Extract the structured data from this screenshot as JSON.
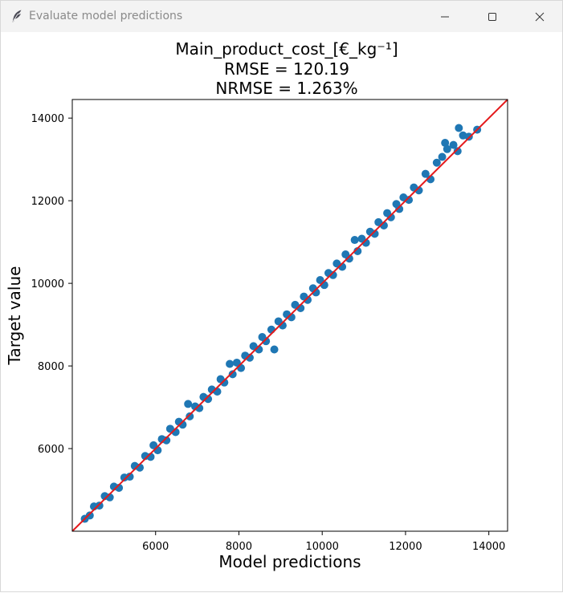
{
  "window": {
    "title": "Evaluate model prediction",
    "title_suffix": "s",
    "controls": {
      "minimize": "minimize-icon",
      "maximize": "maximize-icon",
      "close": "close-icon"
    }
  },
  "chart_data": {
    "type": "scatter",
    "title_lines": [
      "Main_product_cost_[€_kg⁻¹]",
      "RMSE = 120.19",
      "NRMSE = 1.263%"
    ],
    "xlabel": "Model predictions",
    "ylabel": "Target value",
    "xlim": [
      4000,
      14450
    ],
    "ylim": [
      4000,
      14450
    ],
    "xticks": [
      6000,
      8000,
      10000,
      12000,
      14000
    ],
    "yticks": [
      6000,
      8000,
      10000,
      12000,
      14000
    ],
    "xtick_labels": [
      "6000",
      "8000",
      "10000",
      "12000",
      "14000"
    ],
    "ytick_labels": [
      "6000",
      "8000",
      "10000",
      "12000",
      "14000"
    ],
    "point_color": "#1f77b4",
    "line_color": "#e41a1c",
    "reference_line": "y = x",
    "points": [
      [
        4300,
        4300
      ],
      [
        4420,
        4380
      ],
      [
        4520,
        4600
      ],
      [
        4650,
        4620
      ],
      [
        4780,
        4850
      ],
      [
        4900,
        4820
      ],
      [
        5000,
        5080
      ],
      [
        5120,
        5050
      ],
      [
        5250,
        5300
      ],
      [
        5380,
        5320
      ],
      [
        5500,
        5580
      ],
      [
        5620,
        5540
      ],
      [
        5750,
        5820
      ],
      [
        5880,
        5800
      ],
      [
        5950,
        6080
      ],
      [
        6050,
        5960
      ],
      [
        6150,
        6230
      ],
      [
        6260,
        6200
      ],
      [
        6350,
        6480
      ],
      [
        6480,
        6400
      ],
      [
        6560,
        6650
      ],
      [
        6650,
        6580
      ],
      [
        6780,
        7080
      ],
      [
        6820,
        6780
      ],
      [
        6950,
        7020
      ],
      [
        7050,
        6980
      ],
      [
        7150,
        7250
      ],
      [
        7260,
        7200
      ],
      [
        7350,
        7430
      ],
      [
        7480,
        7380
      ],
      [
        7560,
        7680
      ],
      [
        7650,
        7600
      ],
      [
        7780,
        8050
      ],
      [
        7850,
        7800
      ],
      [
        7950,
        8080
      ],
      [
        8050,
        7950
      ],
      [
        8150,
        8250
      ],
      [
        8260,
        8200
      ],
      [
        8350,
        8480
      ],
      [
        8480,
        8400
      ],
      [
        8560,
        8700
      ],
      [
        8650,
        8600
      ],
      [
        8780,
        8880
      ],
      [
        8850,
        8400
      ],
      [
        8950,
        9080
      ],
      [
        9050,
        8980
      ],
      [
        9150,
        9250
      ],
      [
        9260,
        9180
      ],
      [
        9350,
        9480
      ],
      [
        9480,
        9400
      ],
      [
        9560,
        9680
      ],
      [
        9650,
        9600
      ],
      [
        9780,
        9880
      ],
      [
        9850,
        9780
      ],
      [
        9950,
        10080
      ],
      [
        10050,
        9960
      ],
      [
        10150,
        10250
      ],
      [
        10260,
        10200
      ],
      [
        10350,
        10480
      ],
      [
        10480,
        10400
      ],
      [
        10560,
        10700
      ],
      [
        10650,
        10600
      ],
      [
        10780,
        11050
      ],
      [
        10850,
        10780
      ],
      [
        10950,
        11080
      ],
      [
        11050,
        10980
      ],
      [
        11150,
        11250
      ],
      [
        11260,
        11200
      ],
      [
        11350,
        11480
      ],
      [
        11480,
        11400
      ],
      [
        11560,
        11700
      ],
      [
        11650,
        11600
      ],
      [
        11780,
        11920
      ],
      [
        11850,
        11800
      ],
      [
        11950,
        12080
      ],
      [
        12080,
        12020
      ],
      [
        12200,
        12320
      ],
      [
        12320,
        12250
      ],
      [
        12480,
        12650
      ],
      [
        12600,
        12520
      ],
      [
        12750,
        12920
      ],
      [
        12880,
        13060
      ],
      [
        13000,
        13250
      ],
      [
        13150,
        13350
      ],
      [
        13280,
        13760
      ],
      [
        13380,
        13580
      ],
      [
        13520,
        13550
      ],
      [
        13720,
        13720
      ],
      [
        13250,
        13200
      ],
      [
        12950,
        13400
      ]
    ]
  }
}
